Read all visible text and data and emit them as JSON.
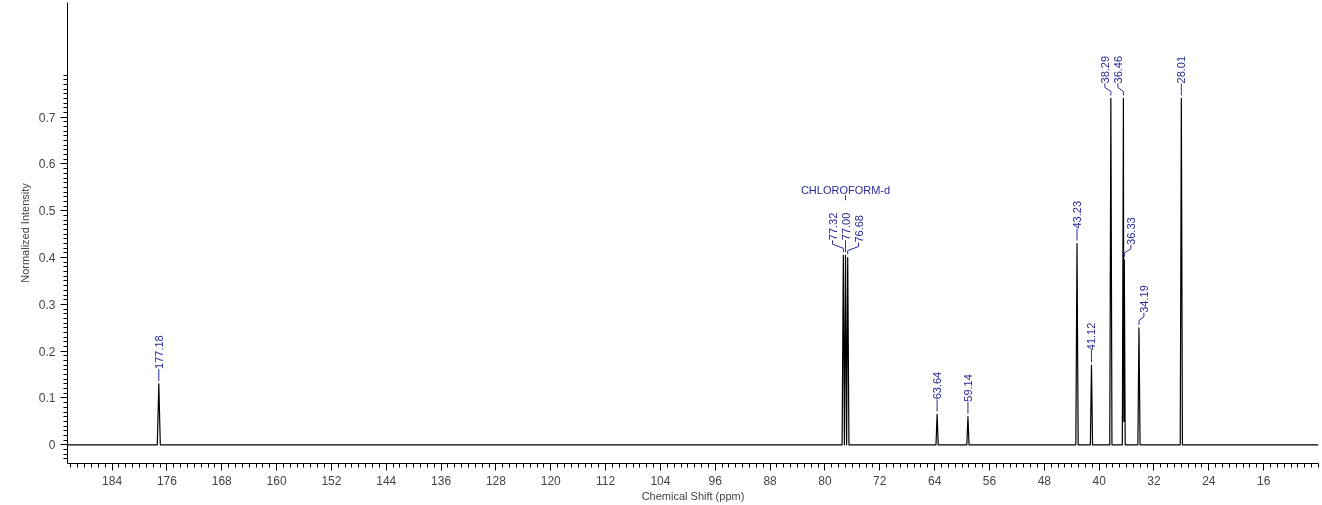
{
  "chart_data": {
    "type": "line",
    "xlabel": "Chemical Shift (ppm)",
    "ylabel": "Normalized Intensity",
    "xlim": [
      190.5,
      8
    ],
    "ylim": [
      -0.04,
      0.945
    ],
    "xticks": [
      184,
      176,
      168,
      160,
      152,
      144,
      136,
      128,
      120,
      112,
      104,
      96,
      88,
      80,
      72,
      64,
      56,
      48,
      40,
      32,
      24,
      16
    ],
    "yticks": [
      0,
      0.1,
      0.2,
      0.3,
      0.4,
      0.5,
      0.6,
      0.7
    ],
    "grid": false,
    "marker": "none",
    "line_style": "solid",
    "series": [
      {
        "color": "#000000",
        "x": [
          190.5,
          177.4,
          177.18,
          176.96,
          77.5,
          77.32,
          77.16,
          77.0,
          76.84,
          76.68,
          76.5,
          63.8,
          63.64,
          63.48,
          59.3,
          59.14,
          58.98,
          43.4,
          43.23,
          43.06,
          41.28,
          41.12,
          40.96,
          38.45,
          38.29,
          38.13,
          36.62,
          36.46,
          36.4,
          36.33,
          36.2,
          34.35,
          34.19,
          34.03,
          28.17,
          28.01,
          27.85,
          8
        ],
        "values": [
          0,
          0,
          0.13,
          0,
          0,
          0.405,
          0,
          0.405,
          0,
          0.4,
          0,
          0,
          0.065,
          0,
          0,
          0.06,
          0,
          0,
          0.43,
          0,
          0,
          0.17,
          0,
          0,
          0.74,
          0,
          0,
          0.74,
          0.05,
          0.395,
          0,
          0,
          0.25,
          0,
          0,
          0.74,
          0,
          0
        ]
      }
    ],
    "annotations": [
      {
        "text": "177.18",
        "x": 177.18,
        "y": 0.13
      },
      {
        "text": "77.32",
        "x": 77.32,
        "y": 0.405
      },
      {
        "text": "77.00",
        "x": 77.0,
        "y": 0.405
      },
      {
        "text": "76.68",
        "x": 76.68,
        "y": 0.4
      },
      "CHLOROFORM-d",
      {
        "text": "63.64",
        "x": 63.64,
        "y": 0.065
      },
      {
        "text": "59.14",
        "x": 59.14,
        "y": 0.06
      },
      {
        "text": "43.23",
        "x": 43.23,
        "y": 0.43
      },
      {
        "text": "41.12",
        "x": 41.12,
        "y": 0.17
      },
      {
        "text": "38.29",
        "x": 38.29,
        "y": 0.74
      },
      {
        "text": "36.46",
        "x": 36.46,
        "y": 0.74
      },
      {
        "text": "36.33",
        "x": 36.33,
        "y": 0.395
      },
      {
        "text": "34.19",
        "x": 34.19,
        "y": 0.25
      },
      {
        "text": "28.01",
        "x": 28.01,
        "y": 0.74
      }
    ]
  }
}
